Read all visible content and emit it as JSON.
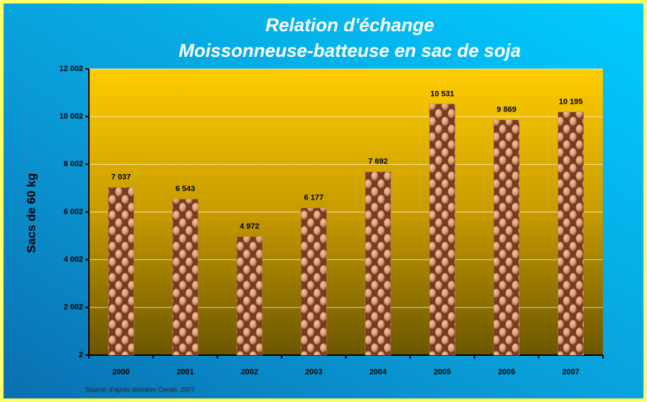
{
  "chart_data": {
    "type": "bar",
    "title": "Relation d'échange",
    "subtitle": "Moissonneuse-batteuse en sac de soja",
    "y_label": "Sacs de 60 kg",
    "source": "Source: d'après données Conab, 2007",
    "categories": [
      "2000",
      "2001",
      "2002",
      "2003",
      "2004",
      "2005",
      "2006",
      "2007"
    ],
    "values": [
      7037,
      6543,
      4972,
      6177,
      7692,
      10531,
      9869,
      10195
    ],
    "value_labels": [
      "7 037",
      "6 543",
      "4 972",
      "6 177",
      "7 692",
      "10 531",
      "9 869",
      "10 195"
    ],
    "color": "#b9825a",
    "ylim": [
      2,
      12002
    ],
    "yticks": [
      {
        "value": 2,
        "label": "2"
      },
      {
        "value": 2002,
        "label": "2 002"
      },
      {
        "value": 4002,
        "label": "4 002"
      },
      {
        "value": 6002,
        "label": "6 002"
      },
      {
        "value": 8002,
        "label": "8 002"
      },
      {
        "value": 10002,
        "label": "10 002"
      },
      {
        "value": 12002,
        "label": "12 002"
      }
    ],
    "grid": true
  }
}
